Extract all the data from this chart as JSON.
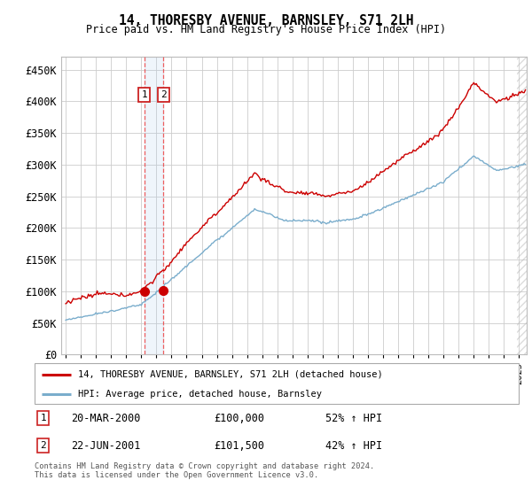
{
  "title": "14, THORESBY AVENUE, BARNSLEY, S71 2LH",
  "subtitle": "Price paid vs. HM Land Registry's House Price Index (HPI)",
  "ylabel_ticks": [
    "£0",
    "£50K",
    "£100K",
    "£150K",
    "£200K",
    "£250K",
    "£300K",
    "£350K",
    "£400K",
    "£450K"
  ],
  "ytick_values": [
    0,
    50000,
    100000,
    150000,
    200000,
    250000,
    300000,
    350000,
    400000,
    450000
  ],
  "ylim": [
    0,
    470000
  ],
  "xlim_start": 1994.7,
  "xlim_end": 2025.5,
  "xtick_years": [
    1995,
    1996,
    1997,
    1998,
    1999,
    2000,
    2001,
    2002,
    2003,
    2004,
    2005,
    2006,
    2007,
    2008,
    2009,
    2010,
    2011,
    2012,
    2013,
    2014,
    2015,
    2016,
    2017,
    2018,
    2019,
    2020,
    2021,
    2022,
    2023,
    2024,
    2025
  ],
  "transaction1_x": 2000.21,
  "transaction1_y": 100000,
  "transaction2_x": 2001.47,
  "transaction2_y": 101500,
  "vline1_x": 2000.21,
  "vline2_x": 2001.47,
  "red_color": "#cc0000",
  "blue_color": "#7aadcc",
  "legend_line1_label": "14, THORESBY AVENUE, BARNSLEY, S71 2LH (detached house)",
  "legend_line2_label": "HPI: Average price, detached house, Barnsley",
  "table_data": [
    {
      "num": "1",
      "date": "20-MAR-2000",
      "price": "£100,000",
      "hpi": "52% ↑ HPI"
    },
    {
      "num": "2",
      "date": "22-JUN-2001",
      "price": "£101,500",
      "hpi": "42% ↑ HPI"
    }
  ],
  "footnote": "Contains HM Land Registry data © Crown copyright and database right 2024.\nThis data is licensed under the Open Government Licence v3.0.",
  "grid_color": "#cccccc",
  "hatch_start": 2024.83
}
